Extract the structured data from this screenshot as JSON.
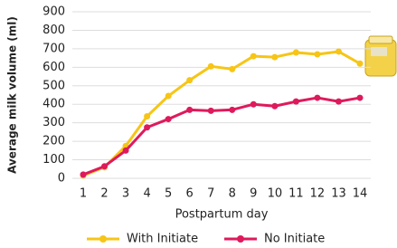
{
  "chart_data": {
    "type": "line",
    "y_label": "Average milk volume (ml)",
    "x_label": "Postpartum day",
    "x": [
      1,
      2,
      3,
      4,
      5,
      6,
      7,
      8,
      9,
      10,
      11,
      12,
      13,
      14
    ],
    "xlim": [
      1,
      14
    ],
    "xticks": [
      1,
      2,
      3,
      4,
      5,
      6,
      7,
      8,
      9,
      10,
      11,
      12,
      13,
      14
    ],
    "ylim": [
      0,
      900
    ],
    "yticks": [
      0,
      100,
      200,
      300,
      400,
      500,
      600,
      700,
      800,
      900
    ],
    "grid": true,
    "legend": "bottom",
    "series": [
      {
        "name": "With Initiate",
        "color": "#f6c516",
        "values": [
          15,
          60,
          175,
          335,
          445,
          530,
          605,
          590,
          660,
          655,
          680,
          670,
          685,
          620
        ]
      },
      {
        "name": "No Initiate",
        "color": "#de1a5c",
        "values": [
          20,
          65,
          150,
          275,
          320,
          370,
          365,
          370,
          400,
          390,
          415,
          435,
          415,
          435
        ]
      }
    ]
  }
}
